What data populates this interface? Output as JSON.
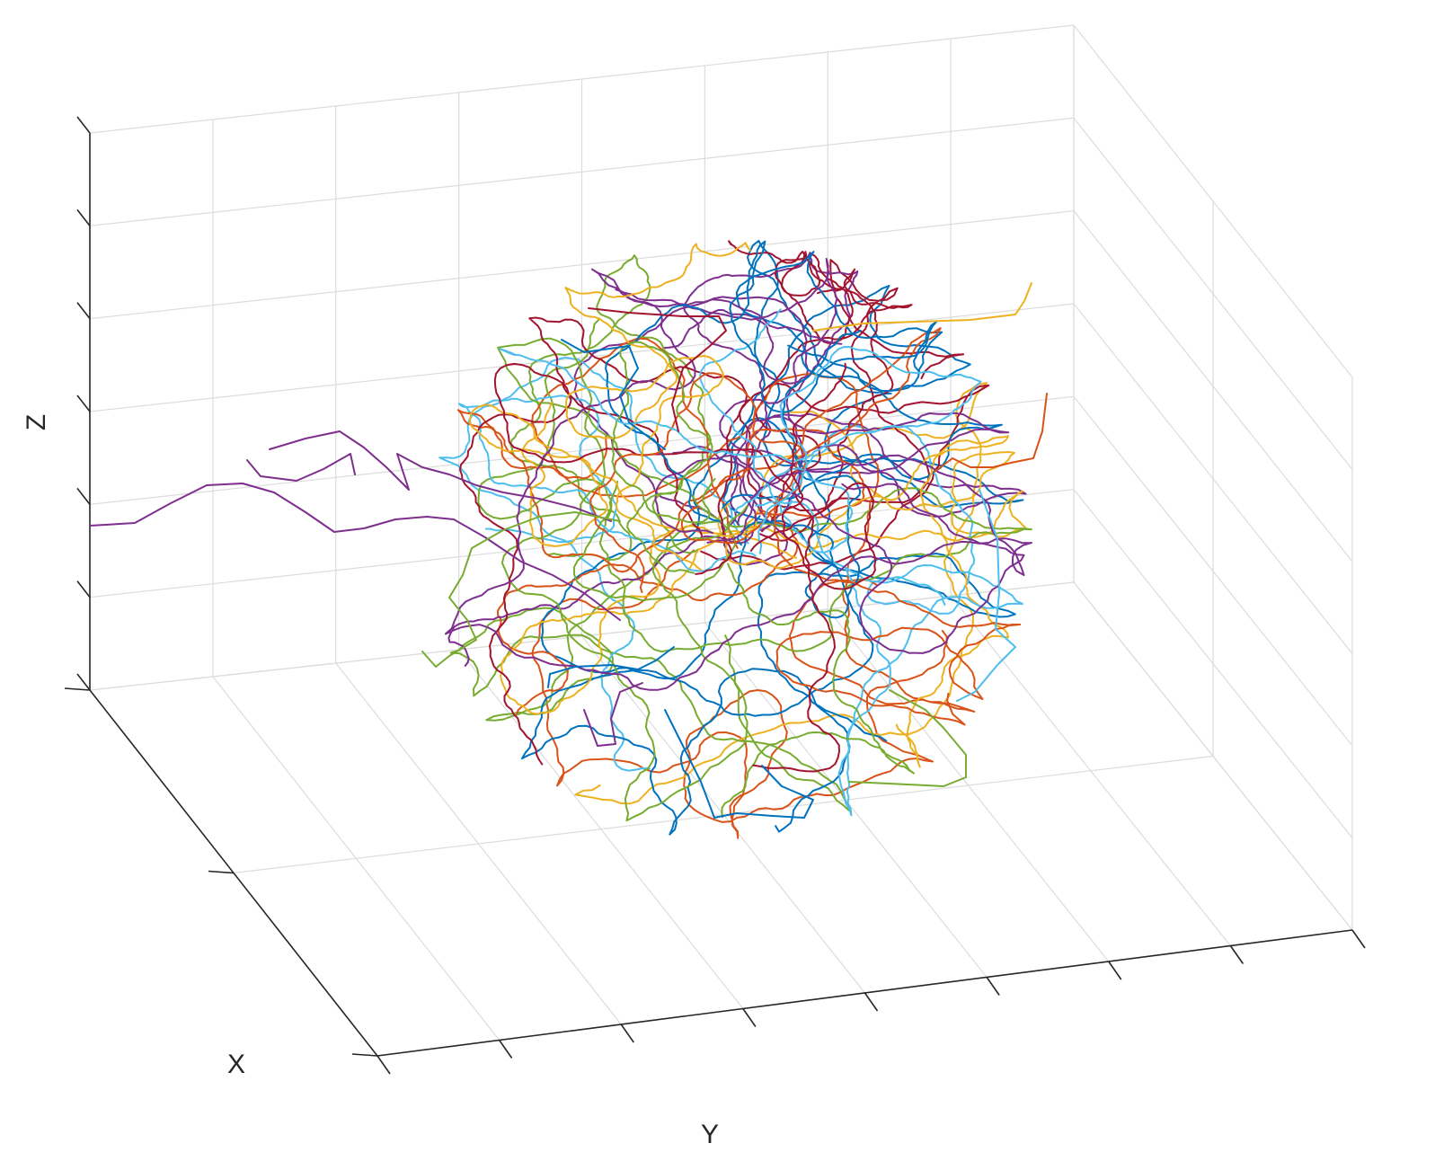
{
  "chart_data": {
    "type": "line",
    "subtype": "3d-trajectories",
    "xlabel": "X",
    "ylabel": "Y",
    "zlabel": "Z",
    "grid": true,
    "tick_labels_visible": false,
    "colors": [
      "#0072BD",
      "#D95319",
      "#EDB120",
      "#7E2F8E",
      "#77AC30",
      "#4DBEEE",
      "#A2142F"
    ]
  }
}
